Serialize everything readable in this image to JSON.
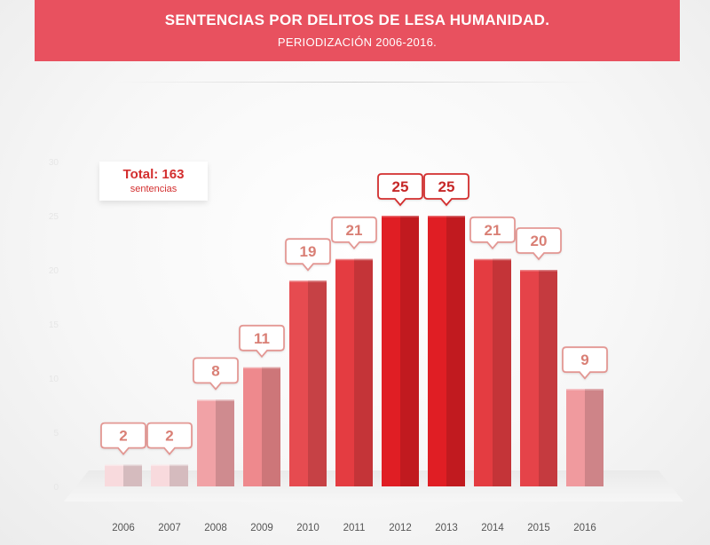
{
  "header": {
    "title": "SENTENCIAS POR DELITOS DE LESA HUMANIDAD.",
    "subtitle": "PERIODIZACIÓN 2006-2016."
  },
  "summary": {
    "total_label": "Total: 163",
    "total_unit": "sentencias"
  },
  "chart_data": {
    "type": "bar",
    "title": "SENTENCIAS POR DELITOS DE LESA HUMANIDAD.",
    "subtitle": "PERIODIZACIÓN 2006-2016.",
    "categories": [
      "2006",
      "2007",
      "2008",
      "2009",
      "2010",
      "2011",
      "2012",
      "2013",
      "2014",
      "2015",
      "2016"
    ],
    "values": [
      2,
      2,
      8,
      11,
      19,
      21,
      25,
      25,
      21,
      20,
      9
    ],
    "ylim": [
      0,
      30
    ],
    "yticks": [
      "0",
      "5",
      "10",
      "15",
      "20",
      "25",
      "30"
    ],
    "xlabel": "",
    "ylabel": "",
    "grid": false,
    "data_labels": true
  },
  "colors": {
    "header_bg": "#e8515f",
    "accent": "#d32f2f"
  }
}
